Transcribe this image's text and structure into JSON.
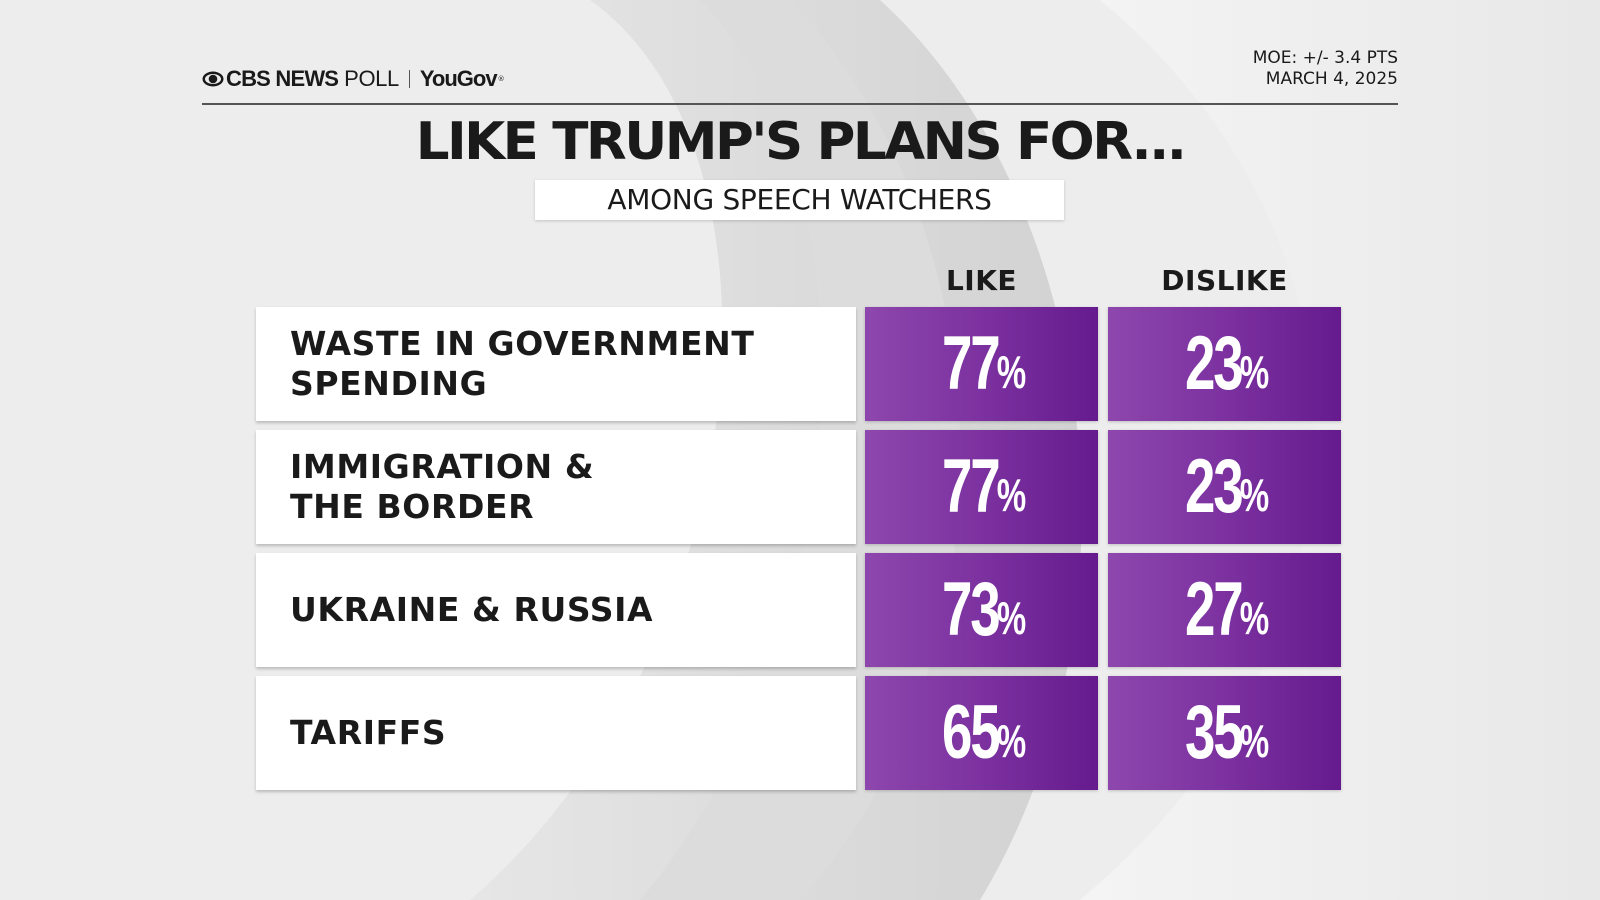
{
  "header": {
    "brand_cbs": "CBS NEWS",
    "brand_poll": "POLL",
    "brand_partner": "YouGov",
    "brand_partner_mark": "®",
    "moe": "MOE: +/- 3.4 PTS",
    "date": "MARCH 4, 2025"
  },
  "colors": {
    "cell_purple_light": "#8d47ad",
    "cell_purple_dark": "#651b8e",
    "label_bg": "#ffffff",
    "text_dark": "#1a1a1a",
    "background": "#ececec"
  },
  "chart_data": {
    "type": "table",
    "title": "LIKE TRUMP'S PLANS FOR...",
    "subtitle": "AMONG SPEECH WATCHERS",
    "columns": [
      "LIKE",
      "DISLIKE"
    ],
    "unit": "%",
    "categories": [
      "WASTE IN GOVERNMENT\nSPENDING",
      "IMMIGRATION &\nTHE BORDER",
      "UKRAINE & RUSSIA",
      "TARIFFS"
    ],
    "series": [
      {
        "name": "LIKE",
        "values": [
          77,
          77,
          73,
          65
        ]
      },
      {
        "name": "DISLIKE",
        "values": [
          23,
          23,
          27,
          35
        ]
      }
    ]
  }
}
